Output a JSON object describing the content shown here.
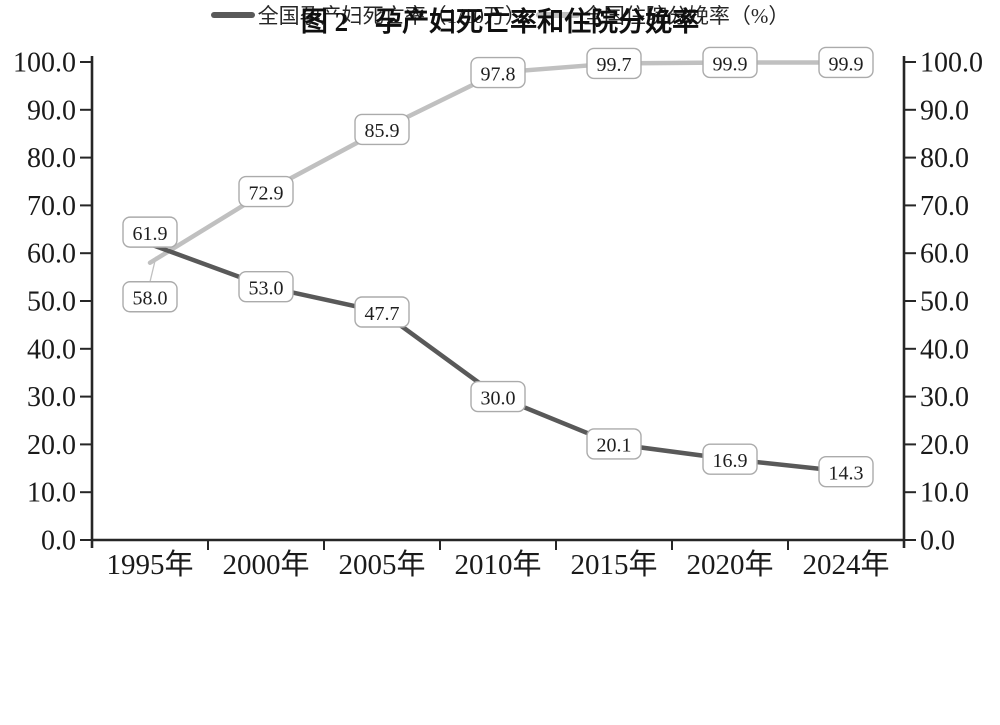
{
  "figure": {
    "caption_prefix": "图 2",
    "caption_title": "孕产妇死亡率和住院分娩率"
  },
  "chart_data": {
    "type": "line",
    "categories": [
      "1995年",
      "2000年",
      "2005年",
      "2010年",
      "2015年",
      "2020年",
      "2024年"
    ],
    "series": [
      {
        "name": "全国孕产妇死亡率（1/10万）",
        "axis": "left",
        "color": "#595959",
        "values": [
          61.9,
          53.0,
          47.7,
          30.0,
          20.1,
          16.9,
          14.3
        ]
      },
      {
        "name": "全国住院分娩率（%）",
        "axis": "right",
        "color": "#c0c0c0",
        "values": [
          58.0,
          72.9,
          85.9,
          97.8,
          99.7,
          99.9,
          99.9
        ]
      }
    ],
    "y_axis": {
      "min": 0,
      "max": 100,
      "step": 10,
      "decimals": 1,
      "dual": true
    },
    "data_labels": true,
    "grid": false,
    "legend_position": "bottom",
    "colors": {
      "axis": "#262626",
      "tick_text": "#1a1a1a",
      "label_box_fill": "#ffffff",
      "label_box_border": "#ababab",
      "label_text": "#1f1f1f"
    }
  }
}
